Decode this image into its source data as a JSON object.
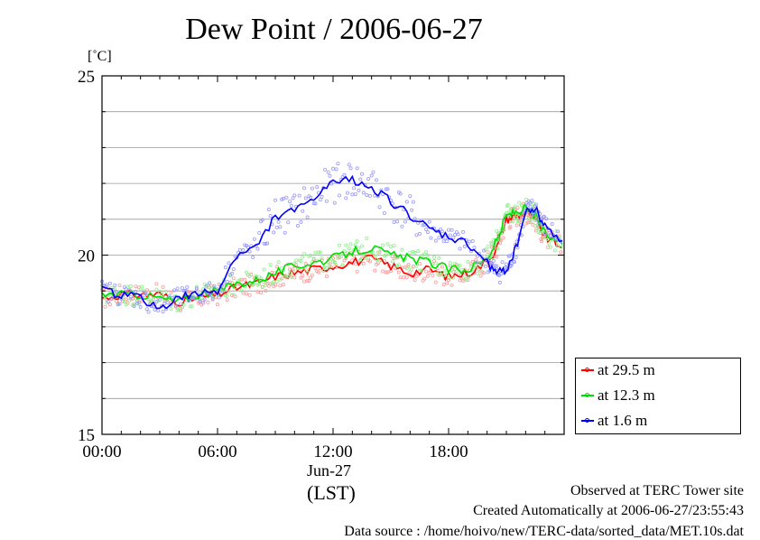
{
  "chart_data": {
    "type": "line",
    "title": "Dew Point / 2006-06-27",
    "ylabel": "[˚C]",
    "xlabel": "(LST)",
    "date_label": "Jun-27",
    "ylim": [
      15,
      25
    ],
    "xlim": [
      0,
      24
    ],
    "y_ticks": [
      "15",
      "20",
      "25"
    ],
    "x_ticks": [
      {
        "hour": 0,
        "label": "00:00"
      },
      {
        "hour": 6,
        "label": "06:00"
      },
      {
        "hour": 12,
        "label": "12:00"
      },
      {
        "hour": 18,
        "label": "18:00"
      }
    ],
    "grid": true,
    "legend_position": "bottom-right, outside plot",
    "x": [
      0,
      1,
      2,
      3,
      4,
      5,
      6,
      7,
      8,
      9,
      10,
      11,
      12,
      13,
      14,
      15,
      16,
      17,
      18,
      19,
      20,
      20.5,
      21,
      21.5,
      22,
      22.5,
      23,
      23.9
    ],
    "series": [
      {
        "name": "at 29.5 m",
        "color": "#ff0000",
        "values": [
          18.8,
          18.9,
          18.9,
          18.9,
          18.7,
          18.8,
          18.9,
          19.1,
          19.2,
          19.4,
          19.5,
          19.6,
          19.7,
          19.8,
          19.9,
          19.7,
          19.5,
          19.6,
          19.4,
          19.5,
          19.8,
          20.2,
          21.0,
          21.1,
          21.2,
          21.0,
          20.5,
          20.2
        ]
      },
      {
        "name": "at 12.3 m",
        "color": "#00dd00",
        "values": [
          18.9,
          18.9,
          18.9,
          18.8,
          18.7,
          18.9,
          19.0,
          19.2,
          19.3,
          19.5,
          19.7,
          19.8,
          19.9,
          20.1,
          20.2,
          20.0,
          19.9,
          19.8,
          19.6,
          19.6,
          19.9,
          20.4,
          21.1,
          21.2,
          21.3,
          21.1,
          20.6,
          20.3
        ]
      },
      {
        "name": "at 1.6 m",
        "color": "#0000ff",
        "values": [
          19.0,
          18.9,
          18.8,
          18.5,
          18.8,
          18.9,
          19.0,
          20.0,
          20.2,
          21.1,
          21.2,
          21.6,
          22.0,
          22.1,
          21.9,
          21.5,
          21.1,
          20.7,
          20.5,
          20.3,
          19.8,
          19.5,
          19.6,
          20.2,
          21.2,
          21.3,
          20.8,
          20.4
        ]
      }
    ]
  },
  "annotations": {
    "observed": "Observed at TERC Tower site",
    "created": "Created Automatically at 2006-06-27/23:55:43",
    "source": "Data source : /home/hoivo/new/TERC-data/sorted_data/MET.10s.dat"
  }
}
